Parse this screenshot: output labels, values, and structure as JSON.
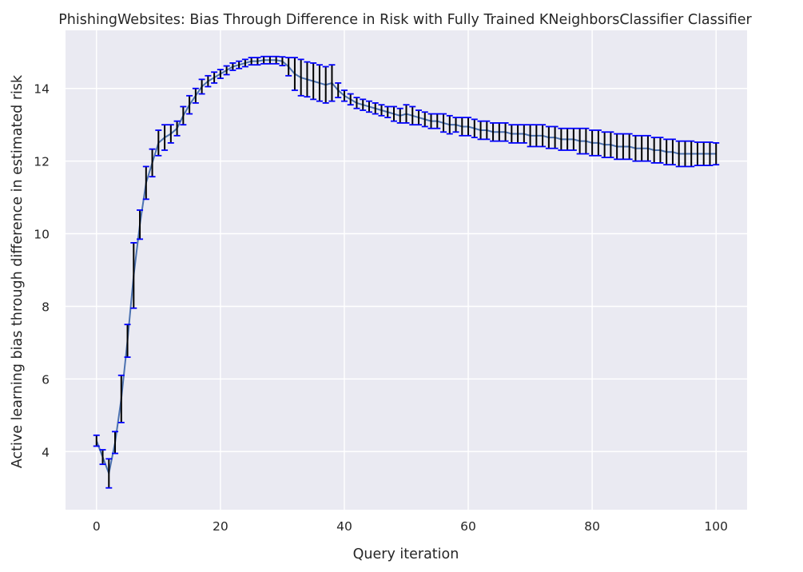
{
  "chart_data": {
    "type": "line",
    "title": "PhishingWebsites: Bias Through Difference in Risk with Fully Trained KNeighborsClassifier Classifier",
    "xlabel": "Query iteration",
    "ylabel": "Active learning bias through difference in estimated risk",
    "xlim": [
      -5,
      105
    ],
    "ylim": [
      2.4,
      15.6
    ],
    "xticks": [
      0,
      20,
      40,
      60,
      80,
      100
    ],
    "yticks": [
      4,
      6,
      8,
      10,
      12,
      14
    ],
    "grid": true,
    "legend": "none",
    "series": [
      {
        "x": [
          0,
          1,
          2,
          3,
          4,
          5,
          6,
          7,
          8,
          9,
          10,
          11,
          12,
          13,
          14,
          15,
          16,
          17,
          18,
          19,
          20,
          21,
          22,
          23,
          24,
          25,
          26,
          27,
          28,
          29,
          30,
          31,
          32,
          33,
          34,
          35,
          36,
          37,
          38,
          39,
          40,
          41,
          42,
          43,
          44,
          45,
          46,
          47,
          48,
          49,
          50,
          51,
          52,
          53,
          54,
          55,
          56,
          57,
          58,
          59,
          60,
          61,
          62,
          63,
          64,
          65,
          66,
          67,
          68,
          69,
          70,
          71,
          72,
          73,
          74,
          75,
          76,
          77,
          78,
          79,
          80,
          81,
          82,
          83,
          84,
          85,
          86,
          87,
          88,
          89,
          90,
          91,
          92,
          93,
          94,
          95,
          96,
          97,
          98,
          99,
          100
        ],
        "y": [
          4.3,
          3.85,
          3.4,
          4.25,
          5.45,
          7.05,
          8.85,
          10.25,
          11.4,
          11.95,
          12.5,
          12.65,
          12.75,
          12.9,
          13.25,
          13.55,
          13.8,
          14.05,
          14.2,
          14.3,
          14.4,
          14.5,
          14.6,
          14.65,
          14.7,
          14.75,
          14.75,
          14.78,
          14.78,
          14.78,
          14.75,
          14.6,
          14.4,
          14.3,
          14.25,
          14.2,
          14.15,
          14.1,
          14.15,
          13.95,
          13.8,
          13.7,
          13.6,
          13.55,
          13.5,
          13.45,
          13.4,
          13.35,
          13.3,
          13.25,
          13.3,
          13.25,
          13.2,
          13.15,
          13.1,
          13.1,
          13.05,
          13.0,
          13.0,
          12.95,
          12.95,
          12.9,
          12.85,
          12.85,
          12.8,
          12.8,
          12.8,
          12.75,
          12.75,
          12.75,
          12.7,
          12.7,
          12.7,
          12.65,
          12.65,
          12.6,
          12.6,
          12.6,
          12.55,
          12.55,
          12.5,
          12.5,
          12.45,
          12.45,
          12.4,
          12.4,
          12.4,
          12.35,
          12.35,
          12.35,
          12.3,
          12.3,
          12.25,
          12.25,
          12.2,
          12.2,
          12.2,
          12.2,
          12.2,
          12.2,
          12.2
        ],
        "err": [
          0.15,
          0.2,
          0.4,
          0.3,
          0.65,
          0.45,
          0.9,
          0.4,
          0.45,
          0.38,
          0.35,
          0.35,
          0.25,
          0.2,
          0.25,
          0.25,
          0.2,
          0.2,
          0.15,
          0.15,
          0.12,
          0.12,
          0.1,
          0.1,
          0.1,
          0.1,
          0.1,
          0.1,
          0.1,
          0.1,
          0.12,
          0.25,
          0.45,
          0.5,
          0.48,
          0.5,
          0.5,
          0.5,
          0.5,
          0.2,
          0.15,
          0.15,
          0.15,
          0.15,
          0.15,
          0.15,
          0.15,
          0.15,
          0.2,
          0.2,
          0.25,
          0.25,
          0.2,
          0.2,
          0.2,
          0.2,
          0.25,
          0.25,
          0.2,
          0.25,
          0.25,
          0.25,
          0.25,
          0.25,
          0.25,
          0.25,
          0.25,
          0.25,
          0.25,
          0.25,
          0.3,
          0.3,
          0.3,
          0.3,
          0.3,
          0.3,
          0.3,
          0.3,
          0.35,
          0.35,
          0.35,
          0.35,
          0.35,
          0.35,
          0.35,
          0.35,
          0.35,
          0.35,
          0.35,
          0.35,
          0.35,
          0.35,
          0.35,
          0.35,
          0.35,
          0.35,
          0.35,
          0.32,
          0.32,
          0.32,
          0.3
        ]
      }
    ],
    "colors": {
      "background": "#eaeaf2",
      "grid": "#ffffff",
      "line": "#4c72b0",
      "errorbar": "#000000",
      "cap": "#0000ff",
      "text": "#262626"
    }
  }
}
